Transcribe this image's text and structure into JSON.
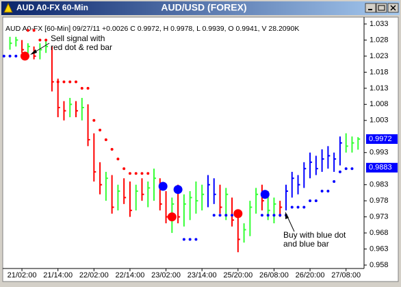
{
  "window": {
    "title": "AUD A0-FX 60-Min",
    "center_title": "AUD/USD (FOREX)"
  },
  "chart_data": {
    "type": "ohlc",
    "header": "AUD A0-FX [60-Min] 09/27/11 +0.0026 C 0.9972, H 0.9978, L 0.9939, O 0.9941, V 28.2090K",
    "x": [
      -4,
      -2,
      0,
      2,
      4,
      6,
      8,
      10,
      12,
      14,
      16,
      18,
      20,
      22,
      24,
      26,
      28,
      30,
      32,
      34,
      36,
      38,
      40,
      42,
      44,
      46,
      48,
      50,
      52,
      54,
      56,
      58,
      60,
      62,
      64,
      66,
      68,
      70,
      72,
      74,
      76,
      78,
      80,
      82,
      84,
      86,
      88,
      90,
      92,
      94,
      96,
      98,
      100,
      102,
      104,
      106,
      108,
      110,
      112
    ],
    "high": [
      1.029,
      1.029,
      1.028,
      1.027,
      1.026,
      1.027,
      1.028,
      1.026,
      1.016,
      1.009,
      1.01,
      1.009,
      1.01,
      1.008,
      0.999,
      0.99,
      0.987,
      0.986,
      0.983,
      0.985,
      0.984,
      0.983,
      0.985,
      0.984,
      0.988,
      0.985,
      0.981,
      0.979,
      0.983,
      0.98,
      0.981,
      0.984,
      0.983,
      0.986,
      0.985,
      0.983,
      0.982,
      0.979,
      0.975,
      0.971,
      0.978,
      0.982,
      0.983,
      0.981,
      0.979,
      0.978,
      0.983,
      0.987,
      0.986,
      0.99,
      0.993,
      0.992,
      0.994,
      0.995,
      0.993,
      0.998,
      0.999,
      0.998,
      0.9978
    ],
    "low": [
      1.025,
      1.026,
      1.024,
      1.023,
      1.022,
      1.022,
      1.024,
      1.012,
      1.004,
      1.003,
      1.004,
      1.004,
      1.003,
      0.995,
      0.984,
      0.98,
      0.978,
      0.974,
      0.975,
      0.977,
      0.973,
      0.975,
      0.978,
      0.976,
      0.978,
      0.975,
      0.971,
      0.968,
      0.971,
      0.97,
      0.972,
      0.974,
      0.975,
      0.976,
      0.977,
      0.974,
      0.972,
      0.97,
      0.962,
      0.965,
      0.967,
      0.974,
      0.975,
      0.972,
      0.971,
      0.973,
      0.975,
      0.979,
      0.98,
      0.982,
      0.985,
      0.986,
      0.987,
      0.988,
      0.987,
      0.989,
      0.993,
      0.993,
      0.9939
    ],
    "close": [
      1.027,
      1.028,
      1.025,
      1.026,
      1.023,
      1.025,
      1.026,
      1.015,
      1.007,
      1.006,
      1.008,
      1.006,
      1.007,
      0.997,
      0.987,
      0.983,
      0.985,
      0.976,
      0.981,
      0.979,
      0.975,
      0.981,
      0.98,
      0.982,
      0.985,
      0.977,
      0.973,
      0.977,
      0.973,
      0.977,
      0.979,
      0.978,
      0.98,
      0.983,
      0.98,
      0.976,
      0.98,
      0.972,
      0.966,
      0.969,
      0.976,
      0.98,
      0.978,
      0.975,
      0.977,
      0.976,
      0.981,
      0.985,
      0.983,
      0.988,
      0.99,
      0.988,
      0.991,
      0.992,
      0.991,
      0.996,
      0.995,
      0.996,
      0.9972
    ],
    "bar_colors": [
      "#33ff33",
      "#33ff33",
      "#ff0000",
      "#33ff33",
      "#ff0000",
      "#33ff33",
      "#33ff33",
      "#ff0000",
      "#ff0000",
      "#ff0000",
      "#33ff33",
      "#ff0000",
      "#33ff33",
      "#ff0000",
      "#ff0000",
      "#ff0000",
      "#33ff33",
      "#ff0000",
      "#33ff33",
      "#ff0000",
      "#ff0000",
      "#33ff33",
      "#ff0000",
      "#33ff33",
      "#33ff33",
      "#ff0000",
      "#ff0000",
      "#33ff33",
      "#ff0000",
      "#33ff33",
      "#33ff33",
      "#33ff33",
      "#33ff33",
      "#0000ff",
      "#0000ff",
      "#ff0000",
      "#33ff33",
      "#ff0000",
      "#ff0000",
      "#33ff33",
      "#33ff33",
      "#33ff33",
      "#ff0000",
      "#33ff33",
      "#33ff33",
      "#ff0000",
      "#0000ff",
      "#0000ff",
      "#0000ff",
      "#0000ff",
      "#0000ff",
      "#0000ff",
      "#0000ff",
      "#0000ff",
      "#0000ff",
      "#0000ff",
      "#33ff33",
      "#33ff33",
      "#33ff33"
    ],
    "stops": [
      {
        "color": "#ff0000",
        "x": [
          2,
          4,
          6,
          8,
          12,
          14,
          16,
          18,
          20,
          22,
          24,
          26,
          28,
          30,
          32,
          34,
          36,
          38,
          40,
          42
        ],
        "values": [
          1.031,
          1.031,
          1.028,
          1.028,
          1.015,
          1.015,
          1.015,
          1.015,
          1.013,
          1.013,
          1.003,
          1.0,
          0.997,
          0.994,
          0.991,
          0.988,
          0.9865,
          0.9865,
          0.9865,
          0.9865
        ]
      },
      {
        "color": "#0000ff",
        "x": [
          -6,
          -4,
          -2,
          0,
          2,
          54,
          56,
          58,
          64,
          66,
          68,
          70,
          80,
          82,
          84,
          86,
          88,
          90,
          92,
          94,
          96,
          98,
          100,
          102,
          104,
          106,
          108,
          110
        ],
        "values": [
          1.023,
          1.023,
          1.023,
          1.023,
          1.023,
          0.966,
          0.966,
          0.966,
          0.9735,
          0.9735,
          0.9735,
          0.9735,
          0.9735,
          0.9735,
          0.9735,
          0.9735,
          0.9735,
          0.976,
          0.976,
          0.976,
          0.978,
          0.978,
          0.981,
          0.981,
          0.984,
          0.987,
          0.988,
          0.988
        ]
      }
    ],
    "signals": {
      "x": [
        1,
        47,
        50,
        52,
        72,
        81
      ],
      "values": [
        1.023,
        0.9825,
        0.973,
        0.9815,
        0.974,
        0.98
      ],
      "colors": [
        "#ff0000",
        "#0000ff",
        "#ff0000",
        "#0000ff",
        "#ff0000",
        "#0000ff"
      ]
    },
    "price_labels": [
      0.9972,
      0.9883
    ],
    "price_label_color": "#0000ff",
    "annotations": {
      "sell": [
        "Sell signal with",
        "red dot & red bar"
      ],
      "buy": [
        "Buy with blue dot",
        "and blue bar"
      ]
    },
    "xlim": [
      -6.4,
      114
    ],
    "xticks": [
      {
        "value": 0,
        "label": "21/02:00"
      },
      {
        "value": 12,
        "label": "21/14:00"
      },
      {
        "value": 24,
        "label": "22/02:00"
      },
      {
        "value": 36,
        "label": "22/14:00"
      },
      {
        "value": 48,
        "label": "23/02:00"
      },
      {
        "value": 60,
        "label": "23/14:00"
      },
      {
        "value": 72,
        "label": "25/20:00"
      },
      {
        "value": 84,
        "label": "26/08:00"
      },
      {
        "value": 96,
        "label": "26/20:00"
      },
      {
        "value": 108,
        "label": "27/08:00"
      }
    ],
    "ylim": [
      0.958,
      1.033
    ],
    "yticks": [
      0.958,
      0.963,
      0.968,
      0.973,
      0.978,
      0.983,
      0.993,
      1.003,
      1.008,
      1.013,
      1.018,
      1.023,
      1.028,
      1.033
    ]
  }
}
